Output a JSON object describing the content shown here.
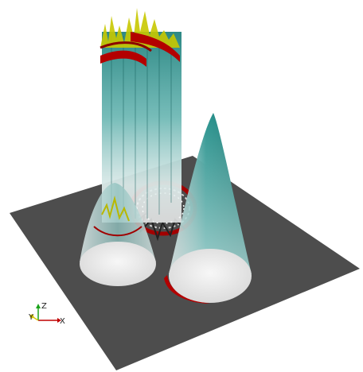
{
  "scene": {
    "background_color": "#ffffff",
    "plane_color": "#4d4d4d",
    "surface_teal": "#1f8f8a",
    "surface_white": "#f0f0f0",
    "edge_red": "#b30000",
    "edge_yellow": "#c8c800"
  },
  "axes": {
    "x_label": "X",
    "y_label": "Y",
    "z_label": "Z",
    "x_color": "#c00000",
    "y_color": "#d6c800",
    "z_color": "#1aa21a"
  }
}
